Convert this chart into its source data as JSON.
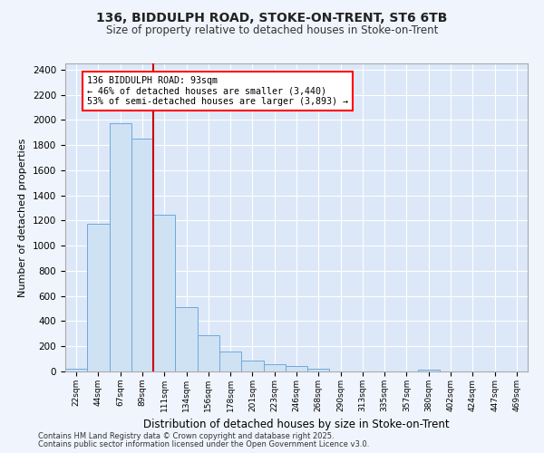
{
  "title1": "136, BIDDULPH ROAD, STOKE-ON-TRENT, ST6 6TB",
  "title2": "Size of property relative to detached houses in Stoke-on-Trent",
  "xlabel": "Distribution of detached houses by size in Stoke-on-Trent",
  "ylabel": "Number of detached properties",
  "bar_color": "#cfe2f3",
  "bar_edge_color": "#6fa8dc",
  "plot_bg_color": "#dce8f8",
  "fig_bg_color": "#f0f4fc",
  "annotation_text": "136 BIDDULPH ROAD: 93sqm\n← 46% of detached houses are smaller (3,440)\n53% of semi-detached houses are larger (3,893) →",
  "vline_x_bin": 3,
  "vline_color": "#cc0000",
  "categories": [
    "22sqm",
    "44sqm",
    "67sqm",
    "89sqm",
    "111sqm",
    "134sqm",
    "156sqm",
    "178sqm",
    "201sqm",
    "223sqm",
    "246sqm",
    "268sqm",
    "290sqm",
    "313sqm",
    "335sqm",
    "357sqm",
    "380sqm",
    "402sqm",
    "424sqm",
    "447sqm",
    "469sqm"
  ],
  "values": [
    25,
    1175,
    1975,
    1850,
    1250,
    510,
    285,
    155,
    90,
    55,
    40,
    20,
    0,
    0,
    0,
    0,
    15,
    0,
    0,
    0,
    0
  ],
  "ylim": [
    0,
    2450
  ],
  "yticks": [
    0,
    200,
    400,
    600,
    800,
    1000,
    1200,
    1400,
    1600,
    1800,
    2000,
    2200,
    2400
  ],
  "footnote1": "Contains HM Land Registry data © Crown copyright and database right 2025.",
  "footnote2": "Contains public sector information licensed under the Open Government Licence v3.0.",
  "grid_color": "#ffffff",
  "spine_color": "#aaaaaa"
}
